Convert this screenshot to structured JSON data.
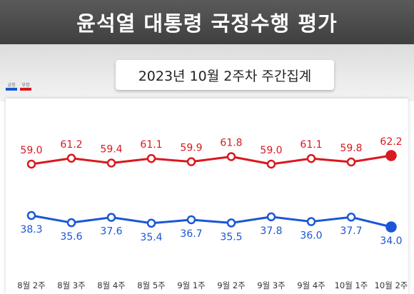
{
  "header": {
    "title": "윤석열 대통령 국정수행 평가"
  },
  "subtitle": "2023년 10월 2주차 주간집계",
  "colors": {
    "positive": "#1a56d6",
    "negative": "#d9181f"
  },
  "chart_data": {
    "type": "line",
    "categories": [
      "8월 2주",
      "8월 3주",
      "8월 4주",
      "8월 5주",
      "9월 1주",
      "9월 2주",
      "9월 3주",
      "9월 4주",
      "10월 1주",
      "10월 2주"
    ],
    "series": [
      {
        "name": "부정",
        "color": "#d9181f",
        "values": [
          59.0,
          61.2,
          59.4,
          61.1,
          59.9,
          61.8,
          59.0,
          61.1,
          59.8,
          62.2
        ]
      },
      {
        "name": "긍정",
        "color": "#1a56d6",
        "values": [
          38.3,
          35.6,
          37.6,
          35.4,
          36.7,
          35.5,
          37.8,
          36.0,
          37.7,
          34.0
        ]
      }
    ],
    "grid": false,
    "legend_position": "top-left"
  }
}
